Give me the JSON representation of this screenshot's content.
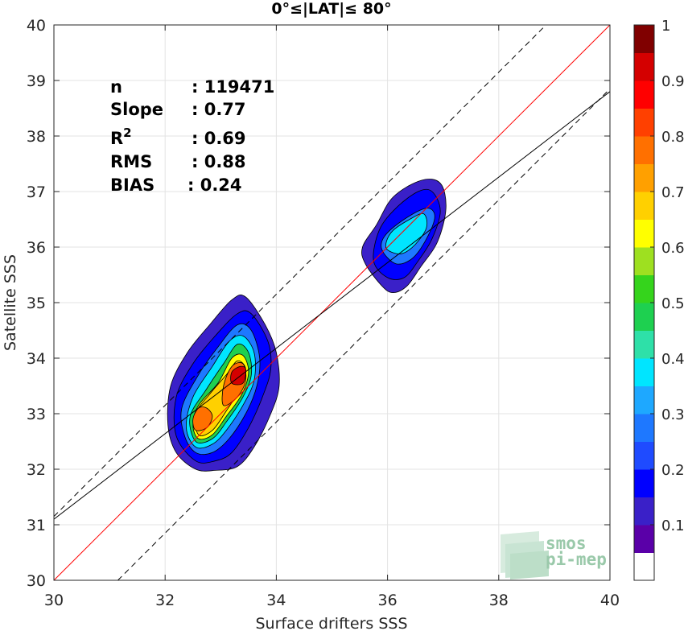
{
  "chart_data": {
    "type": "contour-density-scatter",
    "title": "0°≤|LAT|≤ 80°",
    "xlabel": "Surface drifters SSS",
    "ylabel": "Satellite SSS",
    "xlim": [
      30,
      40
    ],
    "ylim": [
      30,
      40
    ],
    "xticks": [
      "30",
      "32",
      "34",
      "36",
      "38",
      "40"
    ],
    "yticks": [
      "30",
      "31",
      "32",
      "33",
      "34",
      "35",
      "36",
      "37",
      "38",
      "39",
      "40"
    ],
    "grid": true,
    "stats": [
      {
        "label": "n",
        "value": ": 119471"
      },
      {
        "label": "Slope",
        "value": ": 0.77"
      },
      {
        "label": "R",
        "sup": "2",
        "value": ": 0.69"
      },
      {
        "label": "RMS",
        "value": ": 0.88"
      },
      {
        "label": "BIAS",
        "value": ": 0.24"
      }
    ],
    "lines": [
      {
        "role": "identity",
        "color": "#ff0000",
        "style": "solid",
        "slope": 1,
        "intercept": 0
      },
      {
        "role": "fit",
        "color": "#000000",
        "style": "solid",
        "slope": 0.77,
        "x0": 30,
        "y0": 31.1
      },
      {
        "role": "upper-bound",
        "color": "#000000",
        "style": "dashed",
        "slope": 1,
        "intercept": 1.15
      },
      {
        "role": "lower-bound",
        "color": "#000000",
        "style": "dashed",
        "slope": 1,
        "intercept": -1.15
      }
    ],
    "colorbar": {
      "range": [
        0,
        1
      ],
      "ticks": [
        "0.1",
        "0.2",
        "0.3",
        "0.4",
        "0.5",
        "0.6",
        "0.7",
        "0.8",
        "0.9",
        "1"
      ],
      "colors": [
        "#ffffff",
        "#5a00a8",
        "#3a20c8",
        "#0000ff",
        "#1f4bff",
        "#1e78ff",
        "#1ea8ff",
        "#00e5ff",
        "#2ee0a8",
        "#1ed050",
        "#35d41c",
        "#9ee020",
        "#ffff00",
        "#ffd000",
        "#ffa000",
        "#ff7000",
        "#ff4000",
        "#ff0000",
        "#d40000",
        "#800000"
      ]
    },
    "clusters": [
      {
        "name": "low-salinity cluster",
        "levels": [
          {
            "level": 0.1,
            "color": "#3a20c8",
            "points": [
              [
                32.55,
                32.0
              ],
              [
                32.9,
                31.98
              ],
              [
                33.3,
                32.05
              ],
              [
                33.6,
                32.4
              ],
              [
                33.9,
                33.0
              ],
              [
                34.05,
                33.5
              ],
              [
                34.0,
                34.1
              ],
              [
                33.8,
                34.6
              ],
              [
                33.45,
                35.1
              ],
              [
                33.2,
                35.05
              ],
              [
                32.8,
                34.6
              ],
              [
                32.4,
                34.1
              ],
              [
                32.1,
                33.5
              ],
              [
                32.05,
                32.8
              ],
              [
                32.2,
                32.3
              ]
            ]
          },
          {
            "level": 0.2,
            "color": "#0000ff",
            "points": [
              [
                32.55,
                32.15
              ],
              [
                32.9,
                32.15
              ],
              [
                33.2,
                32.3
              ],
              [
                33.5,
                32.75
              ],
              [
                33.75,
                33.3
              ],
              [
                33.9,
                33.8
              ],
              [
                33.85,
                34.3
              ],
              [
                33.55,
                34.8
              ],
              [
                33.3,
                34.8
              ],
              [
                32.9,
                34.4
              ],
              [
                32.5,
                33.9
              ],
              [
                32.2,
                33.3
              ],
              [
                32.2,
                32.6
              ]
            ]
          },
          {
            "level": 0.3,
            "color": "#1e78ff",
            "points": [
              [
                32.55,
                32.3
              ],
              [
                32.85,
                32.3
              ],
              [
                33.15,
                32.55
              ],
              [
                33.45,
                33.0
              ],
              [
                33.65,
                33.5
              ],
              [
                33.7,
                34.0
              ],
              [
                33.55,
                34.5
              ],
              [
                33.3,
                34.6
              ],
              [
                32.95,
                34.2
              ],
              [
                32.6,
                33.7
              ],
              [
                32.3,
                33.1
              ],
              [
                32.35,
                32.6
              ]
            ]
          },
          {
            "level": 0.4,
            "color": "#00e5ff",
            "points": [
              [
                32.55,
                32.4
              ],
              [
                32.85,
                32.45
              ],
              [
                33.1,
                32.7
              ],
              [
                33.4,
                33.15
              ],
              [
                33.6,
                33.6
              ],
              [
                33.6,
                34.1
              ],
              [
                33.4,
                34.4
              ],
              [
                33.15,
                34.3
              ],
              [
                32.85,
                33.85
              ],
              [
                32.5,
                33.3
              ],
              [
                32.38,
                32.75
              ]
            ]
          },
          {
            "level": 0.5,
            "color": "#1ed050",
            "points": [
              [
                32.55,
                32.5
              ],
              [
                32.85,
                32.55
              ],
              [
                33.1,
                32.85
              ],
              [
                33.4,
                33.3
              ],
              [
                33.55,
                33.7
              ],
              [
                33.5,
                34.1
              ],
              [
                33.3,
                34.25
              ],
              [
                33.05,
                33.9
              ],
              [
                32.75,
                33.45
              ],
              [
                32.45,
                32.95
              ]
            ]
          },
          {
            "level": 0.6,
            "color": "#ffff00",
            "points": [
              [
                32.6,
                32.55
              ],
              [
                32.85,
                32.62
              ],
              [
                33.1,
                32.95
              ],
              [
                33.38,
                33.35
              ],
              [
                33.5,
                33.75
              ],
              [
                33.4,
                34.05
              ],
              [
                33.2,
                34.0
              ],
              [
                32.95,
                33.55
              ],
              [
                32.6,
                33.15
              ],
              [
                32.5,
                32.8
              ]
            ]
          },
          {
            "level": 0.7,
            "color": "#ffd000",
            "points": [
              [
                32.6,
                32.62
              ],
              [
                32.85,
                32.7
              ],
              [
                33.1,
                33.05
              ],
              [
                33.35,
                33.45
              ],
              [
                33.45,
                33.8
              ],
              [
                33.3,
                33.95
              ],
              [
                33.1,
                33.7
              ],
              [
                32.8,
                33.35
              ],
              [
                32.55,
                33.0
              ]
            ]
          },
          {
            "level": 0.8,
            "color": "#ff7000",
            "points": [
              [
                33.05,
                33.15
              ],
              [
                33.3,
                33.3
              ],
              [
                33.45,
                33.6
              ],
              [
                33.4,
                33.9
              ],
              [
                33.2,
                33.85
              ],
              [
                33.05,
                33.5
              ]
            ]
          },
          {
            "level": 0.8,
            "color": "#ff7000",
            "points": [
              [
                32.55,
                32.7
              ],
              [
                32.75,
                32.75
              ],
              [
                32.85,
                32.95
              ],
              [
                32.75,
                33.1
              ],
              [
                32.6,
                33.1
              ],
              [
                32.5,
                32.9
              ]
            ]
          },
          {
            "level": 0.9,
            "color": "#d40000",
            "points": [
              [
                33.2,
                33.55
              ],
              [
                33.4,
                33.55
              ],
              [
                33.45,
                33.8
              ],
              [
                33.35,
                33.85
              ],
              [
                33.2,
                33.75
              ]
            ]
          }
        ]
      },
      {
        "name": "high-salinity cluster",
        "levels": [
          {
            "level": 0.1,
            "color": "#3a20c8",
            "points": [
              [
                35.6,
                35.7
              ],
              [
                35.9,
                35.3
              ],
              [
                36.1,
                35.18
              ],
              [
                36.35,
                35.3
              ],
              [
                36.6,
                35.65
              ],
              [
                36.9,
                36.1
              ],
              [
                37.05,
                36.7
              ],
              [
                36.95,
                37.15
              ],
              [
                36.6,
                37.2
              ],
              [
                36.1,
                36.9
              ],
              [
                35.8,
                36.4
              ],
              [
                35.55,
                36.0
              ]
            ]
          },
          {
            "level": 0.2,
            "color": "#0000ff",
            "points": [
              [
                35.75,
                35.75
              ],
              [
                36.0,
                35.45
              ],
              [
                36.3,
                35.45
              ],
              [
                36.55,
                35.75
              ],
              [
                36.8,
                36.15
              ],
              [
                36.95,
                36.65
              ],
              [
                36.8,
                37.0
              ],
              [
                36.55,
                37.0
              ],
              [
                36.15,
                36.7
              ],
              [
                35.85,
                36.3
              ]
            ]
          },
          {
            "level": 0.3,
            "color": "#1e78ff",
            "points": [
              [
                35.9,
                35.95
              ],
              [
                36.15,
                35.7
              ],
              [
                36.45,
                35.8
              ],
              [
                36.7,
                36.15
              ],
              [
                36.85,
                36.55
              ],
              [
                36.7,
                36.7
              ],
              [
                36.3,
                36.5
              ],
              [
                35.95,
                36.2
              ]
            ]
          },
          {
            "level": 0.4,
            "color": "#00e5ff",
            "points": [
              [
                36.0,
                35.95
              ],
              [
                36.25,
                35.88
              ],
              [
                36.5,
                36.05
              ],
              [
                36.7,
                36.35
              ],
              [
                36.65,
                36.6
              ],
              [
                36.4,
                36.5
              ],
              [
                36.1,
                36.3
              ],
              [
                35.98,
                36.1
              ]
            ]
          }
        ]
      }
    ],
    "logo": {
      "line1": "smos",
      "line2": "pi-mep"
    }
  }
}
